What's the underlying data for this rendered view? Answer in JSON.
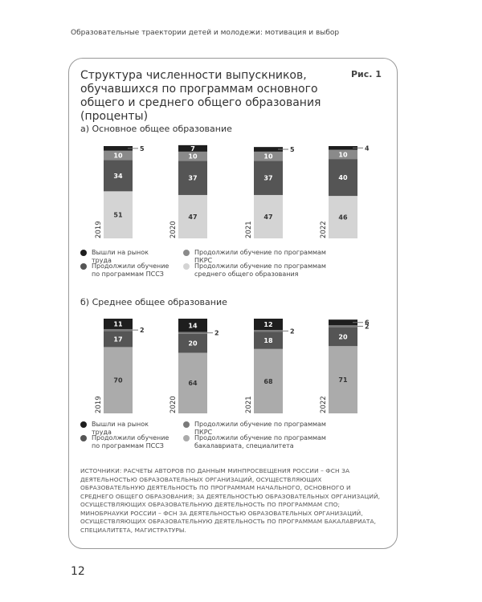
{
  "header": {
    "title": "Образовательные траектории детей и молодежи: мотивация и выбор"
  },
  "figure": {
    "title": "Структура численности выпускников, обучавшихся по программам основного общего и среднего общего образования (проценты)",
    "label": "Рис. 1",
    "source": "ИСТОЧНИКИ: РАСЧЕТЫ АВТОРОВ ПО ДАННЫМ МИНПРОСВЕЩЕНИЯ РОССИИ – ФСН ЗА ДЕЯТЕЛЬНОСТЬЮ ОБРАЗОВАТЕЛЬНЫХ ОРГАНИЗАЦИЙ, ОСУЩЕСТВЛЯЮЩИХ ОБРАЗОВАТЕЛЬНУЮ ДЕЯТЕЛЬНОСТЬ ПО ПРОГРАММАМ НАЧАЛЬНОГО, ОСНОВНОГО И СРЕДНЕГО ОБЩЕГО ОБРАЗОВАНИЯ; ЗА ДЕЯТЕЛЬНОСТЬЮ ОБРАЗОВАТЕЛЬНЫХ ОРГАНИЗАЦИЙ, ОСУЩЕСТВЛЯЮЩИХ ОБРАЗОВАТЕЛЬНУЮ ДЕЯТЕЛЬНОСТЬ ПО ПРОГРАММАМ СПО; МИНОБРНАУКИ РОССИИ – ФСН ЗА ДЕЯТЕЛЬНОСТЬЮ ОБРАЗОВАТЕЛЬНЫХ ОРГАНИЗАЦИЙ, ОСУЩЕСТВЛЯЮЩИХ ОБРАЗОВАТЕЛЬНУЮ ДЕЯТЕЛЬНОСТЬ ПО ПРОГРАММАМ БАКАЛАВРИАТА, СПЕЦИАЛИТЕТА, МАГИСТРАТУРЫ."
  },
  "chart_data": [
    {
      "type": "stacked-bar",
      "title": "а) Основное общее образование",
      "categories": [
        "2019",
        "2020",
        "2021",
        "2022"
      ],
      "series": [
        {
          "name": "Вышли на рынок труда",
          "color": "#1e1e1e",
          "values": [
            5,
            7,
            5,
            4
          ]
        },
        {
          "name": "Продолжили обучение по программам ПКРС",
          "color": "#8a8a8a",
          "values": [
            10,
            10,
            10,
            10
          ]
        },
        {
          "name": "Продолжили обучение по программам ПССЗ",
          "color": "#555555",
          "values": [
            34,
            37,
            37,
            40
          ]
        },
        {
          "name": "Продолжили обучение по программам среднего общего образования",
          "color": "#d4d4d4",
          "values": [
            51,
            47,
            47,
            46
          ]
        }
      ]
    },
    {
      "type": "stacked-bar",
      "title": "б) Среднее общее образование",
      "categories": [
        "2019",
        "2020",
        "2021",
        "2022"
      ],
      "series": [
        {
          "name": "Вышли на рынок труда",
          "color": "#1e1e1e",
          "values": [
            11,
            14,
            12,
            6
          ]
        },
        {
          "name": "Продолжили обучение по программам ПКРС",
          "color": "#7a7a7a",
          "values": [
            2,
            2,
            2,
            2
          ]
        },
        {
          "name": "Продолжили обучение по программам ПССЗ",
          "color": "#555555",
          "values": [
            17,
            20,
            18,
            20
          ]
        },
        {
          "name": "Продолжили обучение по программам бакалавриата, специалитета",
          "color": "#ababab",
          "values": [
            70,
            64,
            68,
            71
          ]
        }
      ]
    }
  ],
  "page_number": "12"
}
